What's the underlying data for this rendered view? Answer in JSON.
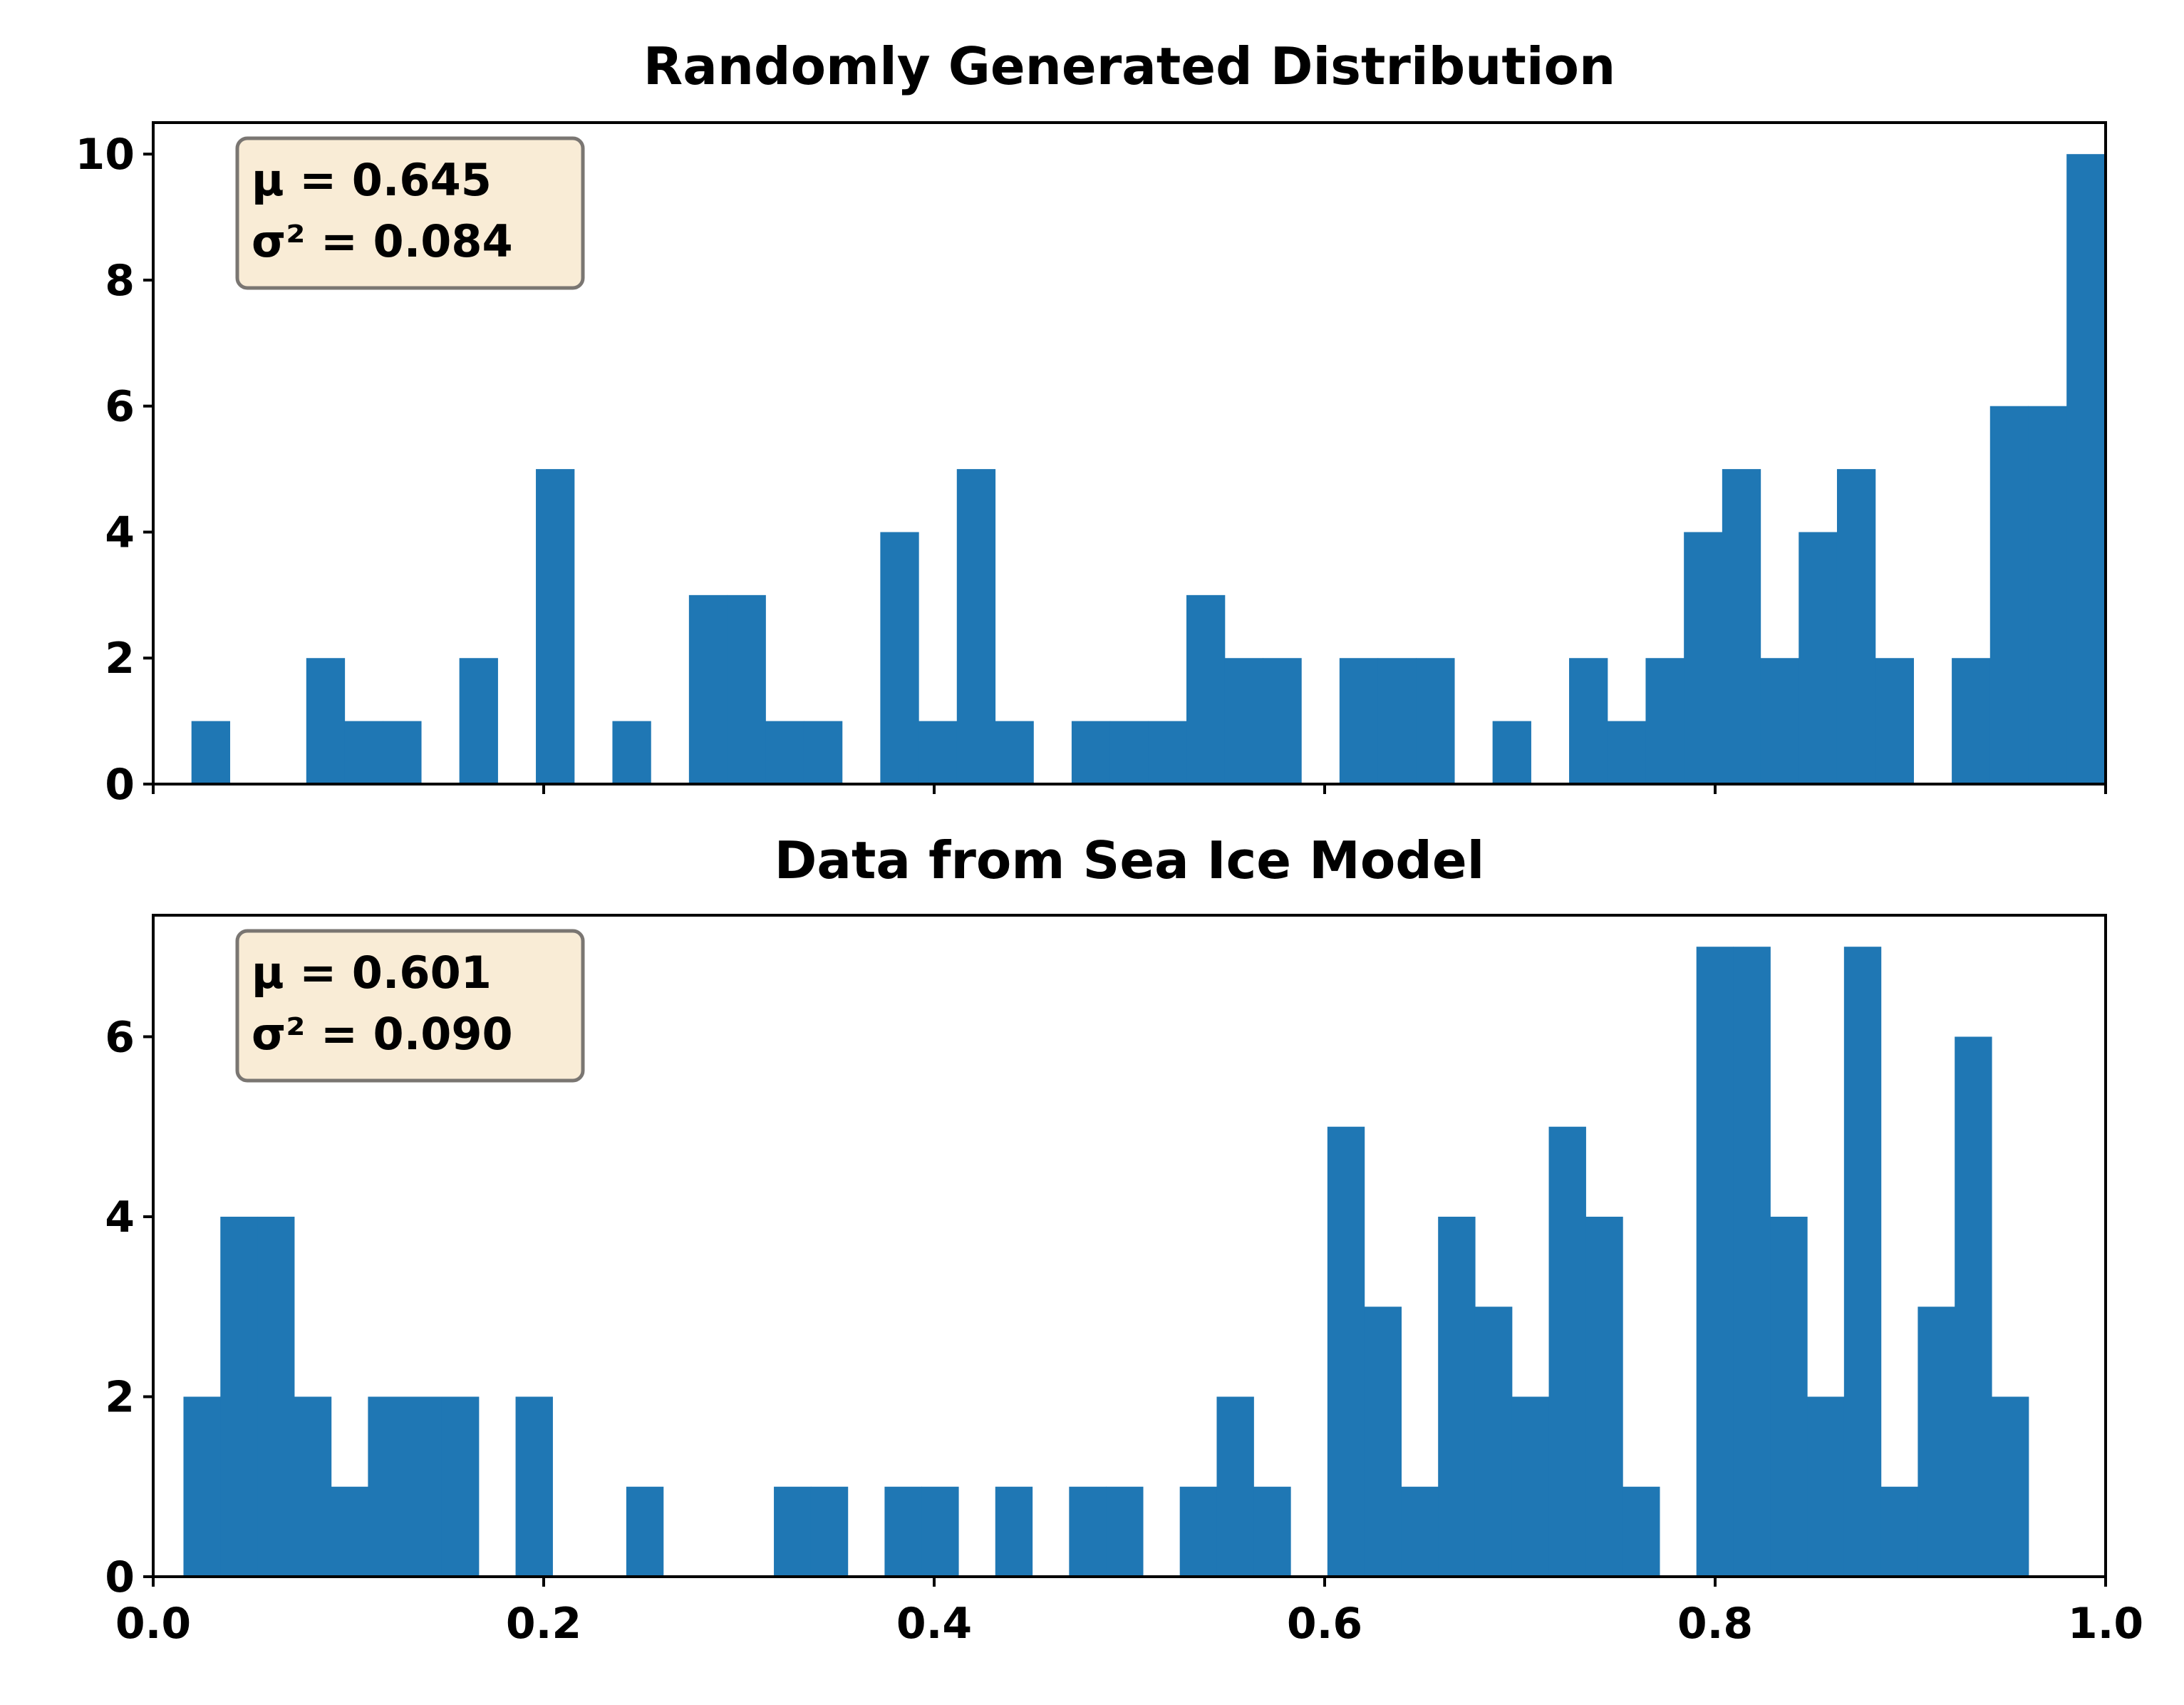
{
  "chart_data": [
    {
      "type": "bar",
      "title": "Randomly Generated Distribution",
      "xlabel": "",
      "ylabel": "",
      "xlim": [
        0.0,
        1.0
      ],
      "ylim": [
        0,
        10.5
      ],
      "yticks": [
        0,
        2,
        4,
        6,
        8,
        10
      ],
      "xticks": [
        0.0,
        0.2,
        0.4,
        0.6,
        0.8,
        1.0
      ],
      "xtick_labels_shown": false,
      "bin_start": 0.0,
      "bin_width": 0.0196,
      "values": [
        0,
        1,
        0,
        0,
        2,
        1,
        1,
        0,
        2,
        0,
        5,
        0,
        1,
        0,
        3,
        3,
        1,
        1,
        0,
        4,
        1,
        5,
        1,
        0,
        1,
        1,
        1,
        3,
        2,
        2,
        0,
        2,
        2,
        2,
        0,
        1,
        0,
        2,
        1,
        2,
        4,
        5,
        2,
        4,
        5,
        2,
        0,
        2,
        6,
        6,
        10
      ],
      "stats": {
        "mean_text": "μ = 0.645",
        "variance_text": "σ² = 0.084"
      },
      "grid": false,
      "color": "#1f77b4"
    },
    {
      "type": "bar",
      "title": "Data from Sea Ice Model",
      "xlabel": "",
      "ylabel": "",
      "xlim": [
        0.0,
        1.0
      ],
      "ylim": [
        0,
        7.35
      ],
      "yticks": [
        0,
        2,
        4,
        6
      ],
      "xticks": [
        0.0,
        0.2,
        0.4,
        0.6,
        0.8,
        1.0
      ],
      "xtick_labels": [
        "0.0",
        "0.2",
        "0.4",
        "0.6",
        "0.8",
        "1.0"
      ],
      "xtick_labels_shown": true,
      "bin_start": 0.0155,
      "bin_width": 0.0189,
      "values": [
        2,
        4,
        4,
        2,
        1,
        2,
        2,
        2,
        0,
        2,
        0,
        0,
        1,
        0,
        0,
        0,
        1,
        1,
        0,
        1,
        1,
        0,
        1,
        0,
        1,
        1,
        0,
        1,
        2,
        1,
        0,
        5,
        3,
        1,
        4,
        3,
        2,
        5,
        4,
        1,
        0,
        7,
        7,
        4,
        2,
        7,
        1,
        3,
        6,
        2
      ],
      "stats": {
        "mean_text": "μ = 0.601",
        "variance_text": "σ² = 0.090"
      },
      "grid": false,
      "color": "#1f77b4"
    }
  ]
}
